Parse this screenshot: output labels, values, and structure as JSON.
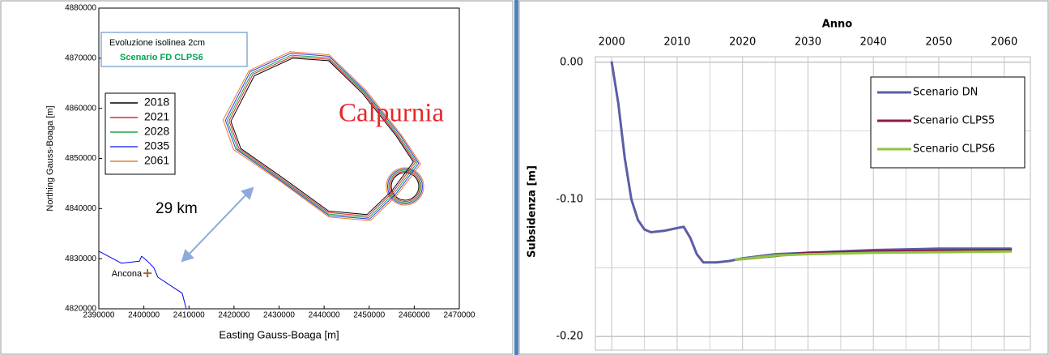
{
  "chart_data": [
    {
      "type": "line",
      "title": "Evoluzione isolinea 2cm",
      "subtitle": "Scenario FD CLPS6",
      "subtitle_color": "#00a651",
      "x_label": "Easting Gauss-Boaga [m]",
      "y_label": "Northing Gauss-Boaga [m]",
      "xlim": [
        2390000,
        2470000
      ],
      "ylim": [
        4820000,
        4880000
      ],
      "xticks": [
        2390000,
        2400000,
        2410000,
        2420000,
        2430000,
        2440000,
        2450000,
        2460000,
        2470000
      ],
      "yticks": [
        4820000,
        4830000,
        4840000,
        4850000,
        4860000,
        4870000,
        4880000
      ],
      "legend": "upper left",
      "series": [
        {
          "name": "2018",
          "color": "#000000",
          "x": [
            2419300,
            2424500,
            2433000,
            2441000,
            2448500,
            2456000,
            2459800,
            2455000,
            2449500,
            2441000,
            2431000,
            2421500,
            2419300
          ],
          "y": [
            4857400,
            4866500,
            4870000,
            4869500,
            4863000,
            4854500,
            4849300,
            4843500,
            4838800,
            4839500,
            4846000,
            4852000,
            4857400
          ]
        },
        {
          "name": "2021",
          "color": "#e8262b",
          "x": [
            2418900,
            2424200,
            2432900,
            2441000,
            2448700,
            2456300,
            2460200,
            2455300,
            2449700,
            2441000,
            2430800,
            2421100,
            2418900
          ],
          "y": [
            4857500,
            4866800,
            4870300,
            4869800,
            4863200,
            4854500,
            4849200,
            4843300,
            4838500,
            4839200,
            4845800,
            4852000,
            4857500
          ]
        },
        {
          "name": "2028",
          "color": "#1aa64a",
          "x": [
            2418500,
            2423900,
            2432700,
            2441000,
            2448800,
            2456600,
            2460600,
            2455600,
            2449900,
            2441000,
            2430600,
            2420800,
            2418500
          ],
          "y": [
            4857500,
            4867000,
            4870600,
            4870100,
            4863400,
            4854500,
            4849100,
            4843100,
            4838200,
            4838900,
            4845700,
            4851900,
            4857500
          ]
        },
        {
          "name": "2035",
          "color": "#2e3cf0",
          "x": [
            2418100,
            2423600,
            2432600,
            2441100,
            2449000,
            2457000,
            2461000,
            2455900,
            2450100,
            2441100,
            2430500,
            2420400,
            2418100
          ],
          "y": [
            4857600,
            4867300,
            4871000,
            4870400,
            4863500,
            4854500,
            4849000,
            4842900,
            4837900,
            4838600,
            4845500,
            4851900,
            4857600
          ]
        },
        {
          "name": "2061",
          "color": "#f07a2a",
          "x": [
            2417600,
            2423300,
            2432400,
            2441100,
            2449200,
            2457300,
            2461400,
            2456200,
            2450300,
            2441100,
            2430300,
            2419900,
            2417600
          ],
          "y": [
            4857700,
            4867500,
            4871300,
            4870700,
            4863700,
            4854500,
            4848900,
            4842700,
            4837600,
            4838300,
            4845400,
            4851800,
            4857700
          ]
        },
        {
          "color": "#0000ee",
          "x": [
            2390000,
            2395000,
            2399000,
            2399500,
            2400800,
            2402200,
            2403100,
            2405800,
            2408500,
            2409400
          ],
          "y": [
            4831500,
            4829100,
            4829500,
            4830500,
            4829500,
            4828200,
            4826300,
            4824700,
            4823100,
            4820000
          ]
        }
      ],
      "markers": [
        {
          "label": "Ancona",
          "x": 2400800,
          "y": 4827100,
          "color": "#9c6b3c"
        }
      ],
      "annotations": [
        {
          "text": "Calpurnia",
          "color": "#e8262b"
        },
        {
          "text": "29 km",
          "color": "#000000"
        }
      ]
    },
    {
      "type": "line",
      "x_label": "Anno",
      "y_label": "Subsidenza [m]",
      "xlim": [
        1997.5,
        2064
      ],
      "ylim": [
        -0.21,
        0.004
      ],
      "xticks": [
        2000,
        2010,
        2020,
        2030,
        2040,
        2050,
        2060
      ],
      "xminorticks": [
        2005,
        2015,
        2025,
        2035,
        2045,
        2055
      ],
      "yticks": [
        {
          "value": 0,
          "label": "0.00"
        },
        {
          "value": -0.1,
          "label": "-0.10"
        },
        {
          "value": -0.2,
          "label": "-0.20"
        }
      ],
      "yminorticks": [
        -0.05,
        -0.15
      ],
      "grid": true,
      "legend": "upper right",
      "series": [
        {
          "name": "Scenario DN",
          "color": "#5b5ea6",
          "x": [
            2000,
            2001,
            2002,
            2003,
            2004,
            2005,
            2006,
            2008,
            2010,
            2011,
            2012,
            2013,
            2014,
            2016,
            2018,
            2020,
            2025,
            2030,
            2040,
            2050,
            2061
          ],
          "y": [
            0,
            -0.03,
            -0.07,
            -0.1,
            -0.115,
            -0.122,
            -0.124,
            -0.123,
            -0.121,
            -0.12,
            -0.128,
            -0.14,
            -0.146,
            -0.146,
            -0.145,
            -0.143,
            -0.14,
            -0.139,
            -0.137,
            -0.136,
            -0.136
          ]
        },
        {
          "name": "Scenario CLPS5",
          "color": "#8b1a4a",
          "x": [
            2019,
            2030,
            2040,
            2061
          ],
          "y": [
            -0.144,
            -0.139,
            -0.138,
            -0.137
          ]
        },
        {
          "name": "Scenario CLPS6",
          "color": "#8cc63f",
          "x": [
            2019,
            2025,
            2030,
            2040,
            2050,
            2061
          ],
          "y": [
            -0.144,
            -0.141,
            -0.14,
            -0.139,
            -0.1385,
            -0.138
          ]
        }
      ]
    }
  ]
}
